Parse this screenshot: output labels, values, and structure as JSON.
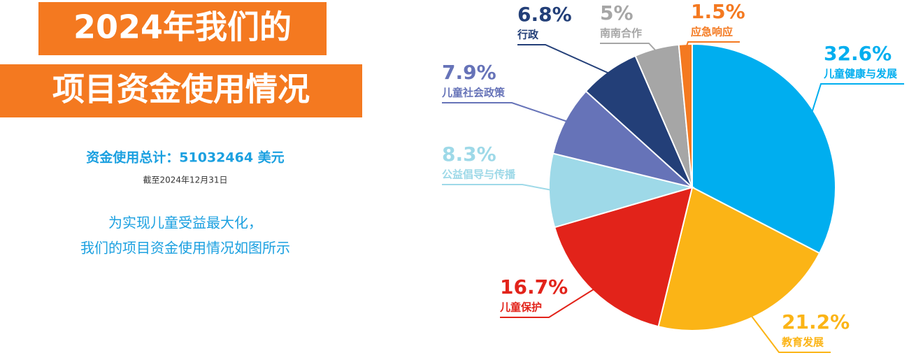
{
  "chart_data": {
    "type": "pie",
    "title": [
      "2024年我们的",
      "项目资金使用情况"
    ],
    "subtitle": "资金使用总计：51032464 美元",
    "note": "截至2024年12月31日",
    "description": [
      "为实现儿童受益最大化，",
      "我们的项目资金使用情况如图所示"
    ],
    "categories": [
      "儿童健康与发展",
      "教育发展",
      "儿童保护",
      "公益倡导与传播",
      "儿童社会政策",
      "行政",
      "南南合作",
      "应急响应"
    ],
    "values": [
      32.6,
      21.2,
      16.7,
      8.3,
      7.9,
      6.8,
      5,
      1.5
    ],
    "value_labels": [
      "32.6%",
      "21.2%",
      "16.7%",
      "8.3%",
      "7.9%",
      "6.8%",
      "5%",
      "1.5%"
    ],
    "colors": [
      "#00aeef",
      "#fbb416",
      "#e2231a",
      "#9ed9e8",
      "#6673b8",
      "#233f78",
      "#a6a6a6",
      "#f47920"
    ]
  }
}
